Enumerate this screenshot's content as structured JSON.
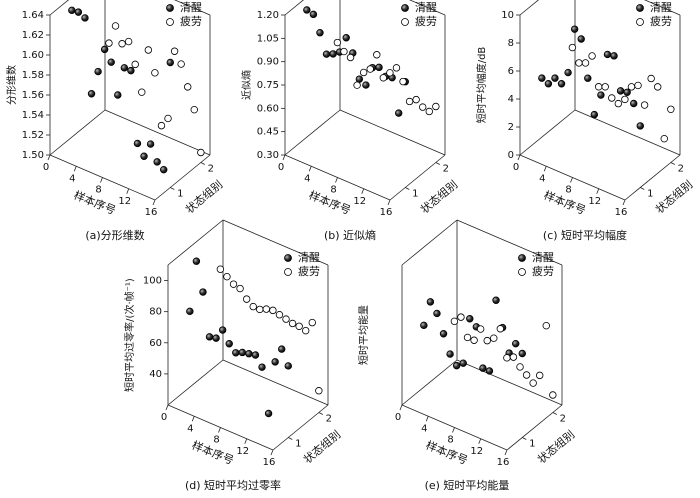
{
  "chart_data": [
    {
      "type": "scatter3d",
      "title": "(a)分形维数",
      "zlabel": "分形维数",
      "xlabel": "样本序号",
      "ylabel": "状态组别",
      "xlim": [
        0,
        16
      ],
      "xticks": [
        0,
        4,
        8,
        12,
        16
      ],
      "ylim": [
        0.5,
        2.3
      ],
      "yticks": [
        1,
        2
      ],
      "zlim": [
        1.5,
        1.64
      ],
      "zticks": [
        {
          "value": 1.5,
          "label": "1.50"
        },
        1.52,
        1.54,
        1.56,
        1.58,
        {
          "value": 1.6,
          "label": "1.60"
        },
        1.62,
        1.64
      ],
      "series": [
        {
          "name": "清醒",
          "color": "#111111",
          "group": 1,
          "x": [
            1,
            2,
            3,
            4,
            5,
            6,
            7,
            8,
            9,
            10,
            11,
            12,
            13,
            14,
            15,
            16
          ],
          "values": [
            1.635,
            1.636,
            1.633,
            1.56,
            1.585,
            1.61,
            1.6,
            1.57,
            1.6,
            1.6,
            1.53,
            1.52,
            1.535,
            1.52,
            1.515,
            1.625
          ]
        },
        {
          "name": "疲劳",
          "color": "#ffffff",
          "group": 2,
          "x": [
            1,
            2,
            3,
            4,
            5,
            6,
            7,
            8,
            9,
            10,
            11,
            12,
            13,
            14,
            15,
            16
          ],
          "values": [
            1.63,
            1.58,
            1.6,
            1.585,
            1.59,
            1.57,
            1.545,
            1.59,
            1.57,
            1.52,
            1.53,
            1.6,
            1.59,
            1.57,
            1.55,
            1.51
          ]
        }
      ]
    },
    {
      "type": "scatter3d",
      "title": "(b) 近似熵",
      "zlabel": "近似熵",
      "xlabel": "样本序号",
      "ylabel": "状态组别",
      "xlim": [
        0,
        16
      ],
      "xticks": [
        0,
        4,
        8,
        12,
        16
      ],
      "ylim": [
        0.5,
        2.3
      ],
      "yticks": [
        1,
        2
      ],
      "zlim": [
        0.3,
        1.2
      ],
      "zticks": [
        {
          "value": 0.3,
          "label": "0.30"
        },
        0.45,
        {
          "value": 0.6,
          "label": "0.60"
        },
        0.75,
        {
          "value": 0.9,
          "label": "0.90"
        },
        1.05,
        {
          "value": 1.2,
          "label": "1.20"
        }
      ],
      "series": [
        {
          "name": "清醒",
          "color": "#111111",
          "group": 1,
          "x": [
            1,
            2,
            3,
            4,
            5,
            6,
            7,
            8,
            9,
            10,
            11,
            12,
            13,
            14,
            15,
            16
          ],
          "values": [
            1.17,
            1.16,
            1.06,
            0.94,
            0.96,
            0.99,
            1.1,
            1.02,
            0.87,
            0.85,
            0.98,
            1.0,
            0.96,
            0.97,
            0.76,
            0.98
          ]
        },
        {
          "name": "疲劳",
          "color": "#ffffff",
          "group": 2,
          "x": [
            1,
            2,
            3,
            4,
            5,
            6,
            7,
            8,
            9,
            10,
            11,
            12,
            13,
            14,
            15,
            16
          ],
          "values": [
            0.8,
            0.76,
            0.74,
            0.58,
            0.68,
            0.72,
            0.83,
            0.7,
            0.75,
            0.8,
            0.73,
            0.62,
            0.65,
            0.62,
            0.61,
            0.66
          ]
        }
      ]
    },
    {
      "type": "scatter3d",
      "title": "(c) 短时平均幅度",
      "zlabel": "短时平均幅度/dB",
      "xlabel": "样本序号",
      "ylabel": "状态组别",
      "xlim": [
        0,
        16
      ],
      "xticks": [
        0,
        4,
        8,
        12,
        16
      ],
      "ylim": [
        0.5,
        2.3
      ],
      "yticks": [
        1,
        2
      ],
      "zlim": [
        0,
        10
      ],
      "zticks": [
        0,
        2,
        4,
        6,
        8,
        10
      ],
      "series": [
        {
          "name": "清醒",
          "color": "#111111",
          "group": 1,
          "x": [
            1,
            2,
            3,
            4,
            5,
            6,
            7,
            8,
            9,
            10,
            11,
            12,
            13,
            14,
            15,
            16
          ],
          "values": [
            4.8,
            4.6,
            5.2,
            5.0,
            6.0,
            9.3,
            8.8,
            6.2,
            3.8,
            5.4,
            8.5,
            8.6,
            6.3,
            6.4,
            5.8,
            4.4
          ]
        },
        {
          "name": "疲劳",
          "color": "#ffffff",
          "group": 2,
          "x": [
            1,
            2,
            3,
            4,
            5,
            6,
            7,
            8,
            9,
            10,
            11,
            12,
            13,
            14,
            15,
            16
          ],
          "values": [
            5.2,
            4.3,
            4.5,
            5.2,
            3.2,
            3.4,
            2.8,
            2.6,
            3.1,
            4.2,
            4.5,
            3.3,
            5.4,
            5.0,
            1.5,
            3.8
          ]
        }
      ]
    },
    {
      "type": "scatter3d",
      "title": "(d) 短时平均过零率",
      "zlabel": "短时平均过零率/(次·帧⁻¹)",
      "xlabel": "样本序号",
      "ylabel": "状态组别",
      "xlim": [
        0,
        16
      ],
      "xticks": [
        0,
        4,
        8,
        12,
        16
      ],
      "ylim": [
        0.5,
        2.3
      ],
      "yticks": [
        1,
        2
      ],
      "zlim": [
        20,
        110
      ],
      "zticks": [
        40,
        60,
        80,
        100
      ],
      "series": [
        {
          "name": "清醒",
          "color": "#111111",
          "group": 1,
          "x": [
            1,
            2,
            3,
            4,
            5,
            6,
            7,
            8,
            9,
            10,
            11,
            12,
            13,
            14,
            15,
            16
          ],
          "values": [
            74,
            108,
            90,
            63,
            64,
            71,
            64,
            60,
            62,
            63,
            64,
            58,
            30,
            65,
            75,
            66
          ]
        },
        {
          "name": "疲劳",
          "color": "#ffffff",
          "group": 2,
          "x": [
            1,
            2,
            3,
            4,
            5,
            6,
            7,
            8,
            9,
            10,
            11,
            12,
            13,
            14,
            15,
            16
          ],
          "values": [
            85,
            82,
            79,
            78,
            73,
            70,
            70,
            72,
            73,
            72,
            71,
            70,
            70,
            69,
            76,
            34
          ]
        }
      ]
    },
    {
      "type": "scatter3d",
      "title": "(e) 短时平均能量",
      "zlabel": "短时平均能量",
      "xlabel": "样本序号",
      "ylabel": "状态组别",
      "xlim": [
        0,
        16
      ],
      "xticks": [
        0,
        4,
        8,
        12,
        16
      ],
      "ylim": [
        0.5,
        2.3
      ],
      "yticks": [
        1,
        2
      ],
      "zlim": [
        0,
        0.8
      ],
      "series": [
        {
          "name": "清醒",
          "color": "#111111",
          "group": 1,
          "x": [
            1,
            2,
            3,
            4,
            5,
            6,
            7,
            8,
            9,
            10,
            11,
            12,
            13,
            14,
            15,
            16
          ],
          "values": [
            0.4,
            0.55,
            0.5,
            0.4,
            0.3,
            0.25,
            0.28,
            0.55,
            0.52,
            0.3,
            0.3,
            0.72,
            0.58,
            0.45,
            0.52,
            0.48
          ]
        },
        {
          "name": "疲劳",
          "color": "#ffffff",
          "group": 2,
          "x": [
            1,
            2,
            3,
            4,
            5,
            6,
            7,
            8,
            9,
            10,
            11,
            12,
            13,
            14,
            15,
            16
          ],
          "values": [
            0.28,
            0.32,
            0.22,
            0.22,
            0.3,
            0.25,
            0.28,
            0.35,
            0.2,
            0.22,
            0.18,
            0.15,
            0.12,
            0.18,
            0.48,
            0.1
          ]
        }
      ]
    }
  ]
}
